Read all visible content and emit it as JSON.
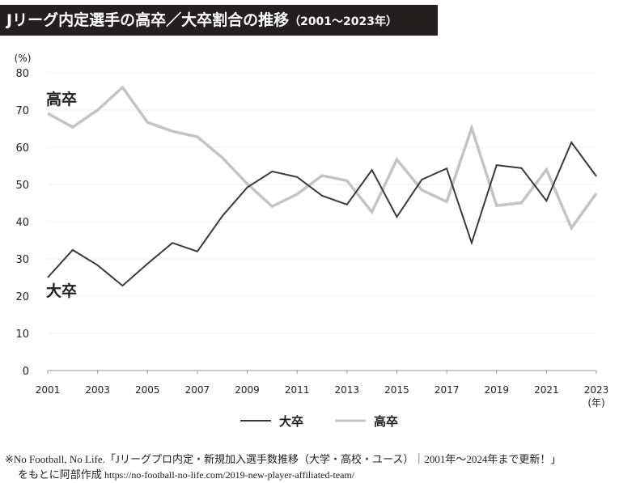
{
  "title": "Jリーグ内定選手の高卒／大卒割合の推移",
  "title_period": "（2001〜2023年）",
  "chart_data": {
    "type": "line",
    "ylabel": "(%)",
    "xlabel": "(年)",
    "ylim": [
      0,
      80
    ],
    "yticks": [
      0,
      10,
      20,
      30,
      40,
      50,
      60,
      70,
      80
    ],
    "xticks": [
      2001,
      2003,
      2005,
      2007,
      2009,
      2011,
      2013,
      2015,
      2017,
      2019,
      2021,
      2023
    ],
    "grid": true,
    "legend": "bottom",
    "x": [
      2001,
      2002,
      2003,
      2004,
      2005,
      2006,
      2007,
      2008,
      2009,
      2010,
      2011,
      2012,
      2013,
      2014,
      2015,
      2016,
      2017,
      2018,
      2019,
      2020,
      2021,
      2022,
      2023
    ],
    "series": [
      {
        "name": "大卒",
        "color": "#3a3a3a",
        "values": [
          25.0,
          32.4,
          28.3,
          22.8,
          28.7,
          34.3,
          32.0,
          41.5,
          49.2,
          53.5,
          52.0,
          47.0,
          44.6,
          53.9,
          41.3,
          51.3,
          54.3,
          34.3,
          55.2,
          54.4,
          45.6,
          61.3,
          52.2
        ]
      },
      {
        "name": "高卒",
        "color": "#c4c4c4",
        "values": [
          69.1,
          65.4,
          70.0,
          76.1,
          66.7,
          64.3,
          62.8,
          57.2,
          50.2,
          44.1,
          47.4,
          52.4,
          51.0,
          42.6,
          56.7,
          48.5,
          45.4,
          65.2,
          44.3,
          45.1,
          54.0,
          38.3,
          47.6
        ]
      }
    ]
  },
  "footnote": {
    "line1": "※No Football, No Life.「Jリーグプロ内定・新規加入選手数推移（大学・高校・ユース）｜2001年〜2024年まで更新！」",
    "line2_text": "をもとに阿部作成",
    "line2_url": "https://no-football-no-life.com/2019-new-player-affiliated-team/"
  }
}
